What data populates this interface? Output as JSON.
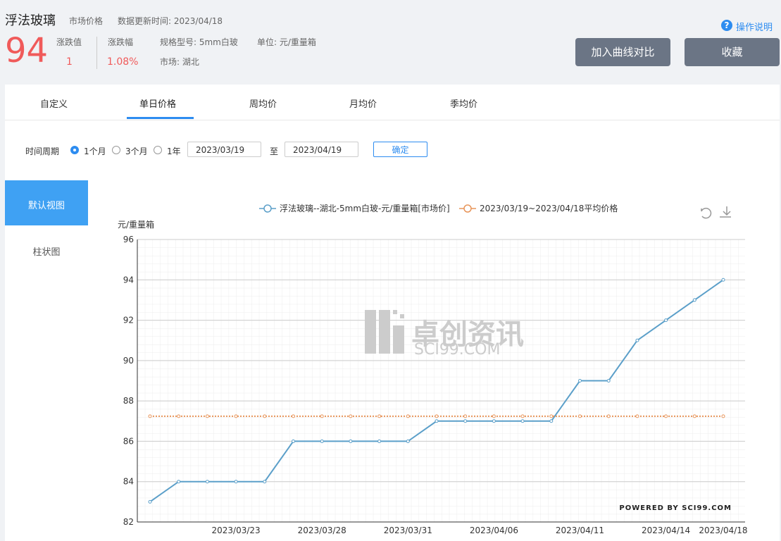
{
  "header": {
    "title": "浮法玻璃",
    "price_type": "市场价格",
    "update_time": "数据更新时间: 2023/04/18",
    "price": 94,
    "change_label": "涨跌值",
    "change": 1,
    "change_pct_label": "涨跌幅",
    "change_pct": "1.08%",
    "spec": "规格型号: 5mm白玻",
    "unit": "单位: 元/重量箱",
    "market": "市场: 湖北",
    "help": "操作说明",
    "buttons": [
      "加入曲线对比",
      "收藏"
    ]
  },
  "tabs": {
    "items": [
      "自定义",
      "单日价格",
      "周均价",
      "月均价",
      "季均价"
    ],
    "active": 1
  },
  "filter": {
    "label": "时间周期",
    "options": [
      "1个月",
      "3个月",
      "1年"
    ],
    "selected": 0,
    "start": "2023/03/19",
    "to": "至",
    "end": "2023/04/19",
    "confirm": "确定"
  },
  "views": {
    "items": [
      "默认视图",
      "柱状图"
    ],
    "active": 0
  },
  "chart_data": {
    "type": "line",
    "y_label": "元/重量箱",
    "categories": [
      null,
      null,
      null,
      "2023/03/23",
      null,
      null,
      "2023/03/28",
      null,
      null,
      "2023/03/31",
      null,
      null,
      "2023/04/06",
      null,
      null,
      "2023/04/11",
      null,
      null,
      "2023/04/14",
      null,
      "2023/04/18"
    ],
    "series": [
      {
        "name": "浮法玻璃--湖北-5mm白玻-元/重量箱[市场价]",
        "color": "#5b9fc9",
        "values": [
          83,
          84,
          84,
          84,
          84,
          86,
          86,
          86,
          86,
          86,
          87,
          87,
          87,
          87,
          87,
          89,
          89,
          91,
          92,
          93,
          94
        ]
      },
      {
        "name": "2023/03/19~2023/04/18平均价格",
        "color": "#e8955a",
        "dashed": true,
        "values": [
          87.24,
          87.24,
          87.24,
          87.24,
          87.24,
          87.24,
          87.24,
          87.24,
          87.24,
          87.24,
          87.24,
          87.24,
          87.24,
          87.24,
          87.24,
          87.24,
          87.24,
          87.24,
          87.24,
          87.24,
          87.24
        ]
      }
    ],
    "ylim": [
      82,
      96
    ],
    "yticks": [
      82,
      84,
      86,
      88,
      90,
      92,
      94,
      96
    ],
    "grid": true,
    "watermark": [
      "卓创资讯",
      "SCI99.COM"
    ],
    "credit": "POWERED BY SCI99.COM"
  }
}
